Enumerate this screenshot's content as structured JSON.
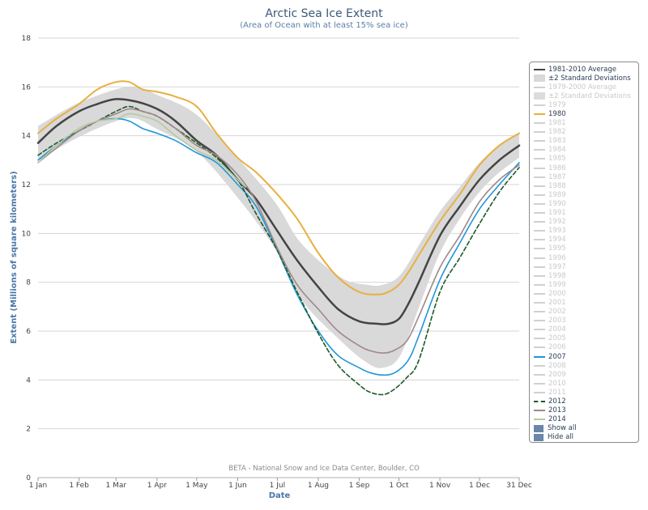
{
  "chart_data": {
    "type": "line",
    "title": "Arctic Sea Ice Extent",
    "subtitle": "(Area of Ocean with at least 15% sea ice)",
    "ylabel": "Extent (Millions of square kilometers)",
    "xlabel": "Date",
    "ylim": [
      0,
      18
    ],
    "y_ticks": [
      "0",
      "2",
      "4",
      "6",
      "8",
      "10",
      "12",
      "14",
      "16",
      "18"
    ],
    "x_ticks": [
      "1 Jan",
      "1 Feb",
      "1 Mar",
      "1 Apr",
      "1 May",
      "1 Jun",
      "1 Jul",
      "1 Aug",
      "1 Sep",
      "1 Oct",
      "1 Nov",
      "1 Dec",
      "31 Dec"
    ],
    "x_tick_days": [
      1,
      32,
      60,
      91,
      121,
      152,
      182,
      213,
      244,
      274,
      305,
      335,
      365
    ],
    "grid": true,
    "legend_position": "right",
    "credit": "BETA - National Snow and Ice Data Center, Boulder, CO",
    "band": {
      "name": "±2 Standard Deviations",
      "color": "#d9d9d9",
      "x": [
        1,
        30,
        60,
        75,
        90,
        120,
        150,
        180,
        200,
        230,
        250,
        262,
        275,
        290,
        305,
        320,
        335,
        350,
        365
      ],
      "upper": [
        14.4,
        15.3,
        15.9,
        16.0,
        15.7,
        14.9,
        13.2,
        11.3,
        9.6,
        8.2,
        7.9,
        7.9,
        8.3,
        9.6,
        10.9,
        11.9,
        12.9,
        13.6,
        14.1
      ],
      "lower": [
        13.0,
        13.9,
        14.6,
        14.7,
        14.3,
        13.4,
        11.6,
        9.4,
        7.3,
        5.6,
        4.7,
        4.5,
        5.0,
        7.1,
        9.2,
        10.6,
        11.7,
        12.5,
        13.1
      ]
    },
    "series": [
      {
        "name": "1981-2010 Average",
        "color": "#444444",
        "dash": false,
        "width": 2.5,
        "x": [
          1,
          15,
          32,
          46,
          60,
          75,
          91,
          105,
          121,
          136,
          152,
          166,
          182,
          197,
          213,
          228,
          244,
          258,
          266,
          274,
          281,
          289,
          305,
          320,
          335,
          350,
          365
        ],
        "values": [
          13.7,
          14.4,
          15.0,
          15.3,
          15.5,
          15.4,
          15.1,
          14.6,
          13.8,
          13.2,
          12.2,
          11.4,
          10.1,
          8.9,
          7.8,
          6.9,
          6.4,
          6.3,
          6.3,
          6.5,
          7.1,
          8.0,
          9.9,
          11.1,
          12.2,
          13.0,
          13.6
        ]
      },
      {
        "name": "1980",
        "color": "#e8b040",
        "dash": false,
        "width": 2,
        "x": [
          1,
          15,
          32,
          46,
          60,
          70,
          80,
          91,
          105,
          121,
          136,
          152,
          166,
          182,
          197,
          213,
          228,
          244,
          258,
          266,
          274,
          281,
          289,
          305,
          320,
          335,
          350,
          365
        ],
        "values": [
          14.1,
          14.7,
          15.3,
          15.9,
          16.2,
          16.2,
          15.9,
          15.8,
          15.6,
          15.2,
          14.1,
          13.1,
          12.5,
          11.6,
          10.6,
          9.2,
          8.2,
          7.6,
          7.5,
          7.6,
          7.9,
          8.4,
          9.1,
          10.5,
          11.6,
          12.8,
          13.6,
          14.1
        ]
      },
      {
        "name": "2007",
        "color": "#2196d8",
        "dash": false,
        "width": 1.6,
        "x": [
          1,
          15,
          32,
          46,
          60,
          70,
          80,
          91,
          105,
          121,
          136,
          152,
          166,
          182,
          197,
          213,
          228,
          244,
          252,
          262,
          271,
          281,
          289,
          305,
          320,
          335,
          350,
          365
        ],
        "values": [
          13.0,
          13.6,
          14.2,
          14.6,
          14.7,
          14.6,
          14.3,
          14.1,
          13.8,
          13.3,
          12.9,
          12.0,
          11.1,
          9.3,
          7.5,
          6.0,
          5.0,
          4.5,
          4.3,
          4.2,
          4.3,
          4.8,
          5.8,
          8.1,
          9.6,
          11.0,
          12.0,
          12.9
        ]
      },
      {
        "name": "2012",
        "color": "#1d5a2a",
        "dash": true,
        "width": 1.6,
        "x": [
          1,
          15,
          32,
          46,
          60,
          70,
          80,
          91,
          105,
          121,
          136,
          152,
          166,
          182,
          197,
          213,
          228,
          244,
          252,
          262,
          270,
          280,
          289,
          305,
          320,
          335,
          350,
          365
        ],
        "values": [
          13.2,
          13.7,
          14.2,
          14.6,
          15.0,
          15.2,
          15.0,
          14.8,
          14.3,
          13.7,
          13.1,
          12.2,
          10.8,
          9.3,
          7.6,
          5.9,
          4.6,
          3.8,
          3.5,
          3.4,
          3.6,
          4.1,
          4.8,
          7.6,
          9.0,
          10.4,
          11.7,
          12.7
        ]
      },
      {
        "name": "2013",
        "color": "#a08888",
        "dash": false,
        "width": 1.6,
        "x": [
          1,
          15,
          32,
          46,
          60,
          70,
          80,
          91,
          105,
          121,
          136,
          152,
          166,
          182,
          197,
          213,
          228,
          244,
          252,
          262,
          270,
          280,
          289,
          305,
          320,
          335,
          350,
          365
        ],
        "values": [
          12.9,
          13.5,
          14.2,
          14.6,
          14.9,
          15.1,
          15.0,
          14.8,
          14.3,
          13.6,
          13.2,
          12.4,
          11.3,
          9.4,
          7.9,
          6.9,
          6.0,
          5.4,
          5.2,
          5.1,
          5.2,
          5.6,
          6.6,
          8.6,
          9.9,
          11.3,
          12.2,
          12.8
        ]
      },
      {
        "name": "2014",
        "color": "#b6c9a0",
        "dash": false,
        "width": 1.6,
        "x": [
          1,
          15,
          32,
          46,
          60,
          70,
          80,
          91,
          105,
          121,
          136,
          152,
          158
        ],
        "values": [
          12.9,
          13.6,
          14.3,
          14.6,
          14.7,
          14.9,
          14.8,
          14.6,
          14.0,
          13.4,
          13.0,
          12.2,
          11.9
        ]
      }
    ]
  },
  "legend": {
    "items": [
      {
        "label": "1981-2010 Average",
        "kind": "line",
        "color": "#444444",
        "active": true
      },
      {
        "label": "±2 Standard Deviations",
        "kind": "rect",
        "color": "#d9d9d9",
        "active": true
      },
      {
        "label": "1979-2000 Average",
        "kind": "line",
        "color": "#d0d0d0",
        "active": false
      },
      {
        "label": "±2 Standard Deviations",
        "kind": "rect",
        "color": "#dcdcdc",
        "active": false
      },
      {
        "label": "1979",
        "kind": "line",
        "color": "#d0d0d0",
        "active": false
      },
      {
        "label": "1980",
        "kind": "line",
        "color": "#e8b040",
        "active": true
      },
      {
        "label": "1981",
        "kind": "line",
        "color": "#d0d0d0",
        "active": false
      },
      {
        "label": "1982",
        "kind": "line",
        "color": "#d0d0d0",
        "active": false
      },
      {
        "label": "1983",
        "kind": "line",
        "color": "#d0d0d0",
        "active": false
      },
      {
        "label": "1984",
        "kind": "line",
        "color": "#d0d0d0",
        "active": false
      },
      {
        "label": "1985",
        "kind": "line",
        "color": "#d0d0d0",
        "active": false
      },
      {
        "label": "1986",
        "kind": "line",
        "color": "#d0d0d0",
        "active": false
      },
      {
        "label": "1987",
        "kind": "line",
        "color": "#d0d0d0",
        "active": false
      },
      {
        "label": "1988",
        "kind": "line",
        "color": "#d0d0d0",
        "active": false
      },
      {
        "label": "1989",
        "kind": "line",
        "color": "#d0d0d0",
        "active": false
      },
      {
        "label": "1990",
        "kind": "line",
        "color": "#d0d0d0",
        "active": false
      },
      {
        "label": "1991",
        "kind": "line",
        "color": "#d0d0d0",
        "active": false
      },
      {
        "label": "1992",
        "kind": "line",
        "color": "#d0d0d0",
        "active": false
      },
      {
        "label": "1993",
        "kind": "line",
        "color": "#d0d0d0",
        "active": false
      },
      {
        "label": "1994",
        "kind": "line",
        "color": "#d0d0d0",
        "active": false
      },
      {
        "label": "1995",
        "kind": "line",
        "color": "#d0d0d0",
        "active": false
      },
      {
        "label": "1996",
        "kind": "line",
        "color": "#d0d0d0",
        "active": false
      },
      {
        "label": "1997",
        "kind": "line",
        "color": "#d0d0d0",
        "active": false
      },
      {
        "label": "1998",
        "kind": "line",
        "color": "#d0d0d0",
        "active": false
      },
      {
        "label": "1999",
        "kind": "line",
        "color": "#d0d0d0",
        "active": false
      },
      {
        "label": "2000",
        "kind": "line",
        "color": "#d0d0d0",
        "active": false
      },
      {
        "label": "2001",
        "kind": "line",
        "color": "#d0d0d0",
        "active": false
      },
      {
        "label": "2002",
        "kind": "line",
        "color": "#d0d0d0",
        "active": false
      },
      {
        "label": "2003",
        "kind": "line",
        "color": "#d0d0d0",
        "active": false
      },
      {
        "label": "2004",
        "kind": "line",
        "color": "#d0d0d0",
        "active": false
      },
      {
        "label": "2005",
        "kind": "line",
        "color": "#d0d0d0",
        "active": false
      },
      {
        "label": "2006",
        "kind": "line",
        "color": "#d0d0d0",
        "active": false
      },
      {
        "label": "2007",
        "kind": "line",
        "color": "#2196d8",
        "active": true
      },
      {
        "label": "2008",
        "kind": "line",
        "color": "#d0d0d0",
        "active": false
      },
      {
        "label": "2009",
        "kind": "line",
        "color": "#d0d0d0",
        "active": false
      },
      {
        "label": "2010",
        "kind": "line",
        "color": "#d0d0d0",
        "active": false
      },
      {
        "label": "2011",
        "kind": "line",
        "color": "#d0d0d0",
        "active": false
      },
      {
        "label": "2012",
        "kind": "dash",
        "color": "#1d5a2a",
        "active": true
      },
      {
        "label": "2013",
        "kind": "line",
        "color": "#a08888",
        "active": true
      },
      {
        "label": "2014",
        "kind": "line",
        "color": "#b6c9a0",
        "active": true
      }
    ],
    "buttons": [
      {
        "label": "Show all"
      },
      {
        "label": "Hide all"
      }
    ]
  }
}
